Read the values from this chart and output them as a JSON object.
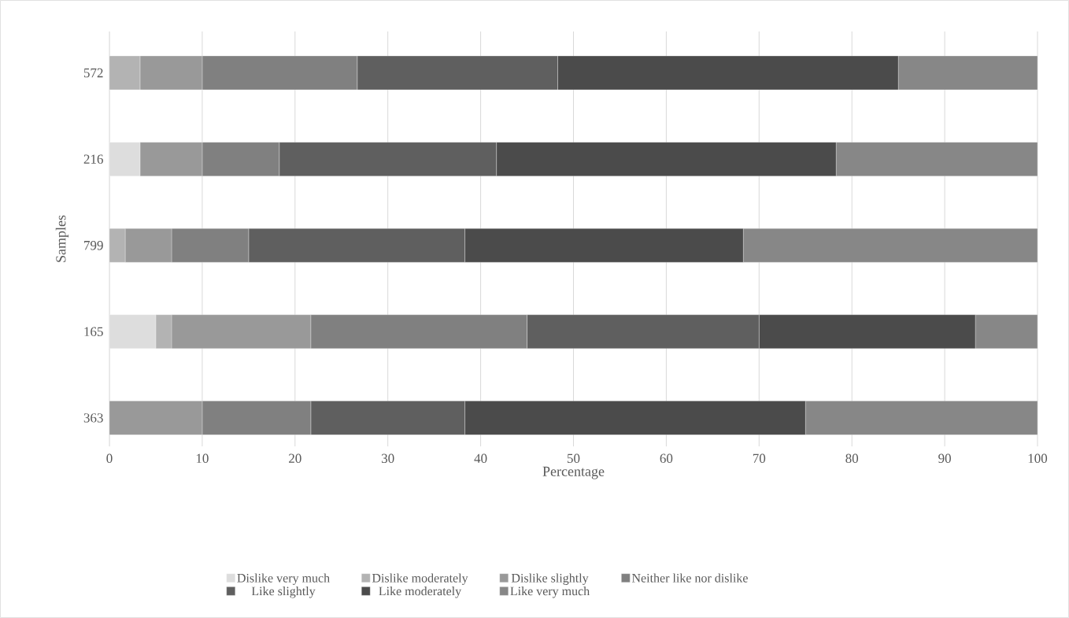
{
  "chart_data": {
    "type": "bar",
    "orientation": "horizontal",
    "stacked": true,
    "categories": [
      "572",
      "216",
      "799",
      "165",
      "363"
    ],
    "series": [
      {
        "name": "Dislike very much",
        "color": "#dddddd",
        "values": [
          0,
          3.3,
          0,
          5.0,
          0
        ]
      },
      {
        "name": "Dislike moderately",
        "color": "#b3b3b3",
        "values": [
          3.3,
          0,
          1.7,
          1.7,
          0
        ]
      },
      {
        "name": "Dislike slightly",
        "color": "#999999",
        "values": [
          6.7,
          6.7,
          5.0,
          15.0,
          10.0
        ]
      },
      {
        "name": "Neither like nor dislike",
        "color": "#808080",
        "values": [
          16.7,
          8.3,
          8.3,
          23.3,
          11.7
        ]
      },
      {
        "name": "Like slightly",
        "color": "#5f5f5f",
        "values": [
          21.6,
          23.4,
          23.3,
          25.0,
          16.6
        ]
      },
      {
        "name": "Like moderately",
        "color": "#4b4b4b",
        "values": [
          36.7,
          36.6,
          30.0,
          23.3,
          36.7
        ]
      },
      {
        "name": "Like very much",
        "color": "#878787",
        "values": [
          15.0,
          21.7,
          31.7,
          6.7,
          25.0
        ]
      }
    ],
    "xlim": [
      0,
      100
    ],
    "xticks": [
      0,
      10,
      20,
      30,
      40,
      50,
      60,
      70,
      80,
      90,
      100
    ],
    "xlabel": "Percentage",
    "ylabel": "Samples",
    "grid": "x",
    "legend": "bottom"
  }
}
